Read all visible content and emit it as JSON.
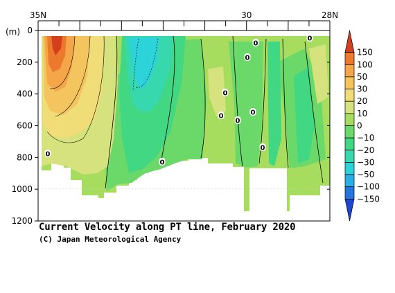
{
  "chart_data": {
    "type": "heatmap",
    "title": "Current Velocity along PT line, February 2020",
    "credit": "(C) Japan Meteorological Agency",
    "yunit": "(m)",
    "x_top_labels": [
      {
        "label": "35N",
        "lat": 35
      },
      {
        "label": "30",
        "lat": 30
      },
      {
        "label": "28N",
        "lat": 28
      }
    ],
    "xlim_lat": [
      35,
      28
    ],
    "ylim_depth_m": [
      0,
      1200
    ],
    "y_ticks": [
      0,
      200,
      400,
      600,
      800,
      1000,
      1200
    ],
    "y_labels": [
      "0",
      "200",
      "400",
      "600",
      "800",
      "1000",
      "1200"
    ],
    "colorbar": {
      "labels": [
        "150",
        "100",
        "50",
        "30",
        "20",
        "10",
        "0",
        "−10",
        "−20",
        "−30",
        "−50",
        "−100",
        "−150"
      ],
      "colors": [
        "#d4401c",
        "#eb7a2e",
        "#f4a649",
        "#f4c55e",
        "#f0dd78",
        "#d6e27d",
        "#a7dd5e",
        "#6bd86a",
        "#42d782",
        "#37d8ad",
        "#2cd3d9",
        "#2aaee4",
        "#2476dc",
        "#1f46d2"
      ]
    },
    "contour_zero_labels": [
      "0",
      "0",
      "0",
      "0",
      "0",
      "0",
      "0",
      "0",
      "0",
      "0"
    ]
  }
}
